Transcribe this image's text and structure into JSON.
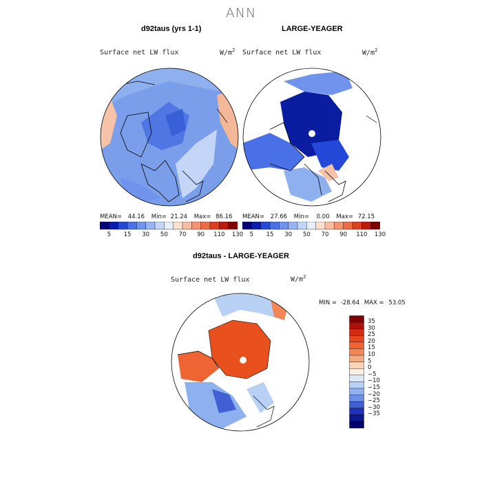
{
  "figure_title": "ANN",
  "colors": {
    "ocean_blue": "#8fb0ee",
    "deep_blue": "#0a2cb0",
    "land_white": "#ffffff",
    "diff_red": "#e8501e",
    "coast": "#000000"
  },
  "chart_data": [
    {
      "type": "heatmap",
      "projection": "north-polar-stereographic",
      "title": "d92taus (yrs 1-1)",
      "variable": "Surface net LW flux",
      "units": "W/m",
      "units_exp": "2",
      "stats": {
        "mean_label": "MEAN=",
        "mean": "44.16",
        "min_label": "Min=",
        "min": "21.24",
        "max_label": "Max=",
        "max": "86.16"
      },
      "colorbar_ticks": [
        "5",
        "15",
        "30",
        "50",
        "70",
        "90",
        "110",
        "130"
      ],
      "colorbar_colors": [
        "#04007a",
        "#0a1cb0",
        "#2448d8",
        "#4a70e8",
        "#7094ee",
        "#98b4f2",
        "#c4d6f8",
        "#e8eefa",
        "#fbe0d0",
        "#f8bca0",
        "#f49470",
        "#ee6a44",
        "#de3e20",
        "#c01a0c",
        "#800000"
      ]
    },
    {
      "type": "heatmap",
      "projection": "north-polar-stereographic",
      "title": "LARGE-YEAGER",
      "variable": "Surface net LW flux",
      "units": "W/m",
      "units_exp": "2",
      "stats": {
        "mean_label": "MEAN=",
        "mean": "27.66",
        "min_label": "Min=",
        "min": "0.00",
        "max_label": "Max=",
        "max": "72.15"
      },
      "colorbar_ticks": [
        "5",
        "15",
        "30",
        "50",
        "70",
        "90",
        "110",
        "130"
      ],
      "colorbar_colors": [
        "#04007a",
        "#0a1cb0",
        "#2448d8",
        "#4a70e8",
        "#7094ee",
        "#98b4f2",
        "#c4d6f8",
        "#e8eefa",
        "#fbe0d0",
        "#f8bca0",
        "#f49470",
        "#ee6a44",
        "#de3e20",
        "#c01a0c",
        "#800000"
      ]
    },
    {
      "type": "heatmap",
      "projection": "north-polar-stereographic",
      "title": "d92taus - LARGE-YEAGER",
      "variable": "Surface net LW flux",
      "units": "W/m",
      "units_exp": "2",
      "stats": {
        "min_label": "MIN =",
        "min": "-28.64",
        "max_label": "MAX =",
        "max": "53.05"
      },
      "colorbar_ticks": [
        "35",
        "30",
        "25",
        "20",
        "15",
        "10",
        "5",
        "0",
        "−5",
        "−10",
        "−15",
        "−20",
        "−25",
        "−30",
        "−35"
      ],
      "colorbar_colors": [
        "#800000",
        "#b0100a",
        "#d42a10",
        "#e8461e",
        "#ee6432",
        "#f28656",
        "#f6aa84",
        "#fad2b8",
        "#fbefe4",
        "#dce8f8",
        "#b8d0f4",
        "#8fb0ee",
        "#6c8ee6",
        "#4060d4",
        "#2030b8",
        "#0c1890",
        "#00006a"
      ]
    }
  ]
}
